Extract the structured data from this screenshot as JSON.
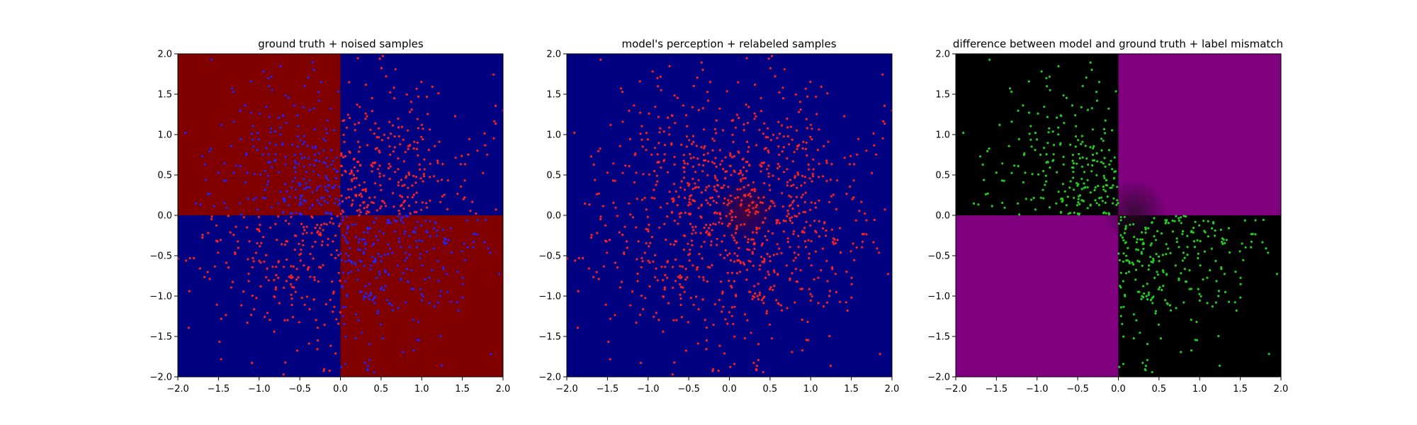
{
  "chart_data": [
    {
      "type": "heatmap",
      "title": "ground truth + noised samples",
      "xlabel": "",
      "ylabel": "",
      "xlim": [
        -2.0,
        2.0
      ],
      "ylim": [
        -2.0,
        2.0
      ],
      "xticks": [
        "−2.0",
        "−1.5",
        "−1.0",
        "−0.5",
        "0.0",
        "0.5",
        "1.0",
        "1.5",
        "2.0"
      ],
      "yticks": [
        "−2.0",
        "−1.5",
        "−1.0",
        "−0.5",
        "0.0",
        "0.5",
        "1.0",
        "1.5",
        "2.0"
      ],
      "background": {
        "pattern": "xor-quadrants",
        "quadrant_colors": {
          "top_left": "#800000",
          "top_right": "#000080",
          "bottom_left": "#000080",
          "bottom_right": "#800000"
        },
        "center_blob": null
      },
      "scatter": {
        "count": 1000,
        "distribution": "gaussian, sd≈0.85, x,y in [−2,2]",
        "rule": "red on blue regions, blue on red regions",
        "colors": {
          "red": "#ff2020",
          "blue": "#2222ff"
        }
      },
      "grid": false
    },
    {
      "type": "heatmap",
      "title": "model's perception + relabeled samples",
      "xlabel": "",
      "ylabel": "",
      "xlim": [
        -2.0,
        2.0
      ],
      "ylim": [
        -2.0,
        2.0
      ],
      "xticks": [
        "−2.0",
        "−1.5",
        "−1.0",
        "−0.5",
        "0.0",
        "0.5",
        "1.0",
        "1.5",
        "2.0"
      ],
      "yticks": [
        "−2.0",
        "−1.5",
        "−1.0",
        "−0.5",
        "0.0",
        "0.5",
        "1.0",
        "1.5",
        "2.0"
      ],
      "background": {
        "pattern": "uniform",
        "color": "#000080",
        "center_blob": {
          "x": 0.2,
          "y": 0.05,
          "sigma": 0.18,
          "color": "#800000",
          "peak_opacity": 0.55
        }
      },
      "scatter": {
        "count": 1000,
        "distribution": "gaussian, sd≈0.85, x,y in [−2,2]",
        "rule": "all red",
        "colors": {
          "red": "#ff2020"
        }
      },
      "grid": false
    },
    {
      "type": "heatmap",
      "title": "difference between model and ground truth + label mismatch",
      "xlabel": "",
      "ylabel": "",
      "xlim": [
        -2.0,
        2.0
      ],
      "ylim": [
        -2.0,
        2.0
      ],
      "xticks": [
        "−2.0",
        "−1.5",
        "−1.0",
        "−0.5",
        "0.0",
        "0.5",
        "1.0",
        "1.5",
        "2.0"
      ],
      "yticks": [
        "−2.0",
        "−1.5",
        "−1.0",
        "−0.5",
        "0.0",
        "0.5",
        "1.0",
        "1.5",
        "2.0"
      ],
      "background": {
        "pattern": "xor-quadrants",
        "quadrant_colors": {
          "top_left": "#000000",
          "top_right": "#800080",
          "bottom_left": "#800080",
          "bottom_right": "#000000"
        },
        "center_blob": {
          "x": 0.2,
          "y": 0.05,
          "sigma": 0.18,
          "color": "#2a0a2a",
          "peak_opacity": 0.8
        }
      },
      "scatter": {
        "count": 1000,
        "distribution": "gaussian, sd≈0.85, x,y in [−2,2]",
        "rule": "green where label mismatches (points in top-left and bottom-right quadrants)",
        "colors": {
          "green": "#22cc22"
        }
      },
      "grid": false
    }
  ]
}
